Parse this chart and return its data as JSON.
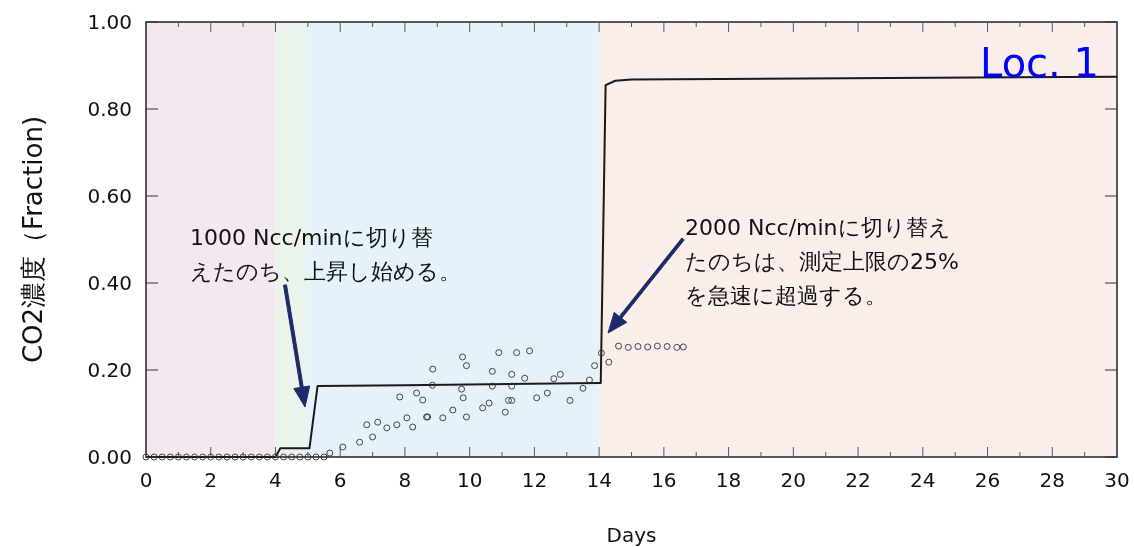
{
  "chart_data": {
    "type": "line",
    "title": "Loc. 1",
    "xlabel": "Days",
    "ylabel": "CO2濃度（Fraction)",
    "xlim": [
      0,
      30
    ],
    "ylim": [
      0,
      1
    ],
    "xticks": [
      0,
      {
        "value": 1,
        "label": null
      },
      2,
      {
        "value": 3,
        "label": null
      },
      4,
      {
        "value": 5,
        "label": null
      },
      6,
      {
        "value": 7,
        "label": null
      },
      8,
      {
        "value": 9,
        "label": null
      },
      10,
      {
        "value": 11,
        "label": null
      },
      12,
      {
        "value": 13,
        "label": null
      },
      14,
      {
        "value": 15,
        "label": null
      },
      16,
      {
        "value": 17,
        "label": null
      },
      18,
      {
        "value": 19,
        "label": null
      },
      20,
      {
        "value": 21,
        "label": null
      },
      22,
      {
        "value": 23,
        "label": null
      },
      24,
      {
        "value": 25,
        "label": null
      },
      26,
      {
        "value": 27,
        "label": null
      },
      28,
      {
        "value": 29,
        "label": null
      },
      30
    ],
    "yticks": [
      {
        "value": 0,
        "label": "0.00"
      },
      {
        "value": 0.2,
        "label": "0.20"
      },
      {
        "value": 0.4,
        "label": "0.40"
      },
      {
        "value": 0.6,
        "label": "0.60"
      },
      {
        "value": 0.8,
        "label": "0.80"
      },
      {
        "value": 1,
        "label": "1.00"
      }
    ],
    "grid": false,
    "bands": [
      {
        "axis": "x",
        "from": 0,
        "to": 4,
        "color": "#f3e7f2"
      },
      {
        "axis": "x",
        "from": 4,
        "to": 4.95,
        "color": "#ebf4ea"
      },
      {
        "axis": "x",
        "from": 4.95,
        "to": 14,
        "color": "#e5f2f9"
      },
      {
        "axis": "x",
        "from": 14,
        "to": 30,
        "color": "#f9eeea"
      }
    ],
    "series": [
      {
        "type": "line",
        "color": "#1a1a1a",
        "marker": "none",
        "x": [
          0,
          4,
          4.15,
          4.9,
          5.05,
          5.3,
          8,
          14,
          14.05,
          14.2,
          14.5,
          15,
          30
        ],
        "values": [
          0,
          0,
          0.02,
          0.02,
          0.02,
          0.163,
          0.165,
          0.17,
          0.17,
          0.855,
          0.865,
          0.868,
          0.874
        ]
      },
      {
        "type": "scatter",
        "color": "#333333",
        "marker": "circle",
        "x": [
          0,
          0.25,
          0.5,
          0.75,
          1,
          1.25,
          1.5,
          1.75,
          2,
          2.25,
          2.5,
          2.75,
          3,
          3.25,
          3.5,
          3.75,
          4,
          4.25,
          4.5,
          4.75,
          5,
          5.25,
          5.5,
          5.68,
          6.08,
          6.6,
          6.82,
          7,
          7.16,
          7.44,
          7.75,
          7.84,
          8.06,
          8.24,
          8.36,
          8.55,
          8.67,
          8.7,
          8.85,
          8.86,
          9.17,
          9.48,
          9.75,
          9.78,
          9.8,
          9.9,
          9.9,
          10.4,
          10.6,
          10.7,
          10.7,
          10.9,
          11.1,
          11.2,
          11.3,
          11.3,
          11.3,
          11.45,
          11.7,
          11.85,
          12.07,
          12.4,
          12.6,
          12.8,
          13.1,
          13.5,
          13.7,
          13.86,
          14.07,
          14.3,
          14.6,
          14.9,
          15.2,
          15.5,
          15.8,
          16.1,
          16.4,
          16.6
        ],
        "values": [
          0,
          0,
          0,
          0,
          0,
          0,
          0,
          0,
          0,
          0,
          0,
          0,
          0,
          0,
          0,
          0,
          0,
          0,
          0,
          0,
          0,
          0,
          0,
          0.009,
          0.023,
          0.034,
          0.074,
          0.046,
          0.08,
          0.067,
          0.074,
          0.138,
          0.09,
          0.069,
          0.147,
          0.131,
          0.092,
          0.092,
          0.165,
          0.202,
          0.09,
          0.108,
          0.156,
          0.23,
          0.136,
          0.092,
          0.21,
          0.113,
          0.124,
          0.163,
          0.197,
          0.24,
          0.103,
          0.13,
          0.163,
          0.19,
          0.13,
          0.24,
          0.181,
          0.244,
          0.136,
          0.147,
          0.18,
          0.19,
          0.13,
          0.158,
          0.177,
          0.21,
          0.239,
          0.218,
          0.255,
          0.252,
          0.254,
          0.253,
          0.255,
          0.254,
          0.252,
          0.253
        ]
      }
    ],
    "annotations": [
      "1000 Ncc/minに切り替えたのち、上昇し始める。",
      "2000 Ncc/minに切り替えたのちは、測定上限の25%を急速に超過する。"
    ]
  }
}
